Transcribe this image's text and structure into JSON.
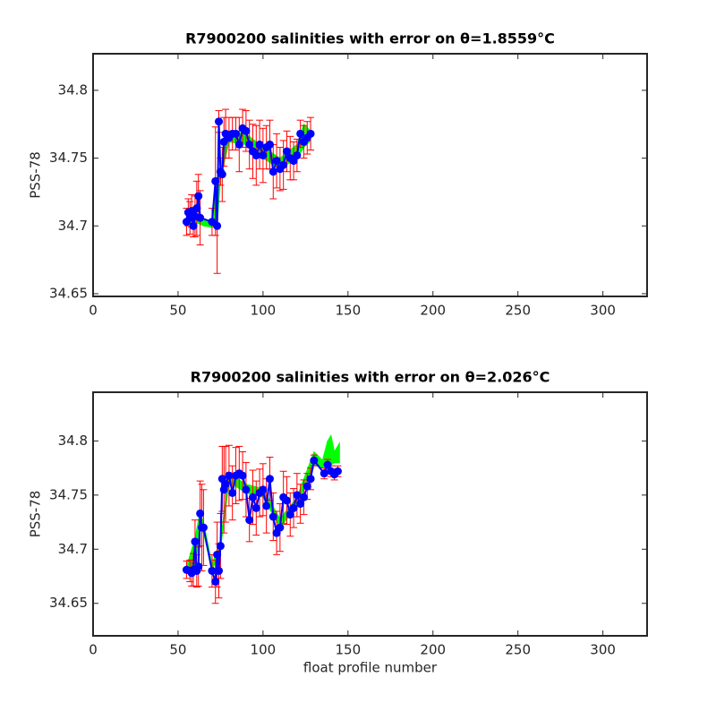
{
  "chart_data": [
    {
      "type": "errorbar",
      "title": "R7900200 salinities with error on θ=1.8559°C",
      "ylabel": "PSS-78",
      "xlim": [
        0,
        326
      ],
      "xticks": [
        0,
        50,
        100,
        150,
        200,
        250,
        300
      ],
      "ylim": [
        34.648,
        34.827
      ],
      "yticks": [
        34.65,
        34.7,
        34.75,
        34.8
      ],
      "band": {
        "color": "#00ff00",
        "x": [
          55,
          60,
          65,
          70,
          73,
          75,
          80,
          90,
          100,
          110,
          120,
          124,
          128
        ],
        "lower": [
          34.7,
          34.703,
          34.7,
          34.699,
          34.7,
          34.735,
          34.762,
          34.76,
          34.75,
          34.742,
          34.75,
          34.758,
          34.763
        ],
        "upper": [
          34.708,
          34.71,
          34.704,
          34.703,
          34.73,
          34.745,
          34.77,
          34.768,
          34.758,
          34.75,
          34.76,
          34.775,
          34.77
        ]
      },
      "series": [
        {
          "color": "#0000ff",
          "error_color": "#ff0000",
          "x": [
            55,
            56,
            57,
            58,
            59,
            60,
            61,
            62,
            63,
            70,
            72,
            73,
            74,
            75,
            76,
            77,
            78,
            80,
            82,
            84,
            86,
            88,
            90,
            92,
            94,
            96,
            98,
            100,
            102,
            104,
            106,
            108,
            110,
            112,
            114,
            116,
            118,
            120,
            122,
            124,
            126,
            128
          ],
          "values": [
            34.703,
            34.71,
            34.706,
            34.711,
            34.7,
            34.707,
            34.713,
            34.722,
            34.706,
            34.703,
            34.733,
            34.7,
            34.777,
            34.74,
            34.738,
            34.762,
            34.768,
            34.765,
            34.768,
            34.768,
            34.76,
            34.772,
            34.77,
            34.76,
            34.755,
            34.752,
            34.76,
            34.752,
            34.758,
            34.76,
            34.74,
            34.748,
            34.742,
            34.745,
            34.755,
            34.75,
            34.748,
            34.752,
            34.768,
            34.762,
            34.765,
            34.768
          ],
          "errors": [
            0.01,
            0.01,
            0.012,
            0.012,
            0.008,
            0.015,
            0.02,
            0.016,
            0.02,
            0.01,
            0.04,
            0.035,
            0.008,
            0.01,
            0.02,
            0.018,
            0.018,
            0.015,
            0.012,
            0.012,
            0.02,
            0.014,
            0.015,
            0.018,
            0.02,
            0.022,
            0.018,
            0.02,
            0.016,
            0.018,
            0.02,
            0.02,
            0.016,
            0.018,
            0.015,
            0.016,
            0.014,
            0.012,
            0.01,
            0.012,
            0.012,
            0.012
          ]
        }
      ]
    },
    {
      "type": "errorbar",
      "title": "R7900200 salinities with error on θ=2.026°C",
      "ylabel": "PSS-78",
      "xlabel": "float profile number",
      "xlim": [
        0,
        326
      ],
      "xticks": [
        0,
        50,
        100,
        150,
        200,
        250,
        300
      ],
      "ylim": [
        34.62,
        34.845
      ],
      "yticks": [
        34.65,
        34.7,
        34.75,
        34.8
      ],
      "band": {
        "color": "#00ff00",
        "x": [
          55,
          60,
          63,
          65,
          70,
          75,
          80,
          90,
          100,
          110,
          120,
          130,
          135,
          138,
          140,
          142,
          145
        ],
        "lower": [
          34.678,
          34.68,
          34.72,
          34.715,
          34.68,
          34.7,
          34.762,
          34.752,
          34.748,
          34.72,
          34.74,
          34.778,
          34.775,
          34.78,
          34.778,
          34.78,
          34.78
        ],
        "upper": [
          34.684,
          34.71,
          34.735,
          34.725,
          34.686,
          34.708,
          34.77,
          34.76,
          34.756,
          34.728,
          34.748,
          34.79,
          34.782,
          34.8,
          34.805,
          34.79,
          34.798
        ]
      },
      "series": [
        {
          "color": "#0000ff",
          "error_color": "#ff0000",
          "x": [
            55,
            57,
            58,
            59,
            60,
            61,
            62,
            63,
            64,
            65,
            70,
            72,
            73,
            74,
            75,
            76,
            77,
            78,
            80,
            82,
            84,
            86,
            88,
            90,
            92,
            94,
            96,
            98,
            100,
            102,
            104,
            106,
            108,
            110,
            112,
            114,
            116,
            118,
            120,
            122,
            124,
            126,
            128,
            130,
            136,
            138,
            140,
            142,
            144
          ],
          "values": [
            34.681,
            34.68,
            34.678,
            34.681,
            34.707,
            34.68,
            34.684,
            34.733,
            34.72,
            34.72,
            34.68,
            34.67,
            34.695,
            34.68,
            34.703,
            34.765,
            34.755,
            34.76,
            34.768,
            34.752,
            34.768,
            34.77,
            34.768,
            34.755,
            34.727,
            34.748,
            34.738,
            34.752,
            34.755,
            34.74,
            34.765,
            34.73,
            34.715,
            34.72,
            34.748,
            34.745,
            34.732,
            34.738,
            34.75,
            34.742,
            34.748,
            34.758,
            34.765,
            34.782,
            34.77,
            34.778,
            34.772,
            34.769,
            34.772
          ],
          "errors": [
            0.008,
            0.01,
            0.012,
            0.015,
            0.02,
            0.015,
            0.018,
            0.03,
            0.04,
            0.035,
            0.015,
            0.02,
            0.03,
            0.025,
            0.03,
            0.03,
            0.04,
            0.035,
            0.028,
            0.025,
            0.026,
            0.025,
            0.022,
            0.025,
            0.02,
            0.025,
            0.025,
            0.022,
            0.024,
            0.025,
            0.02,
            0.022,
            0.02,
            0.022,
            0.024,
            0.022,
            0.02,
            0.018,
            0.02,
            0.018,
            0.016,
            0.012,
            0.01,
            0.005,
            0.005,
            0.005,
            0.005,
            0.005,
            0.005
          ]
        }
      ]
    }
  ]
}
